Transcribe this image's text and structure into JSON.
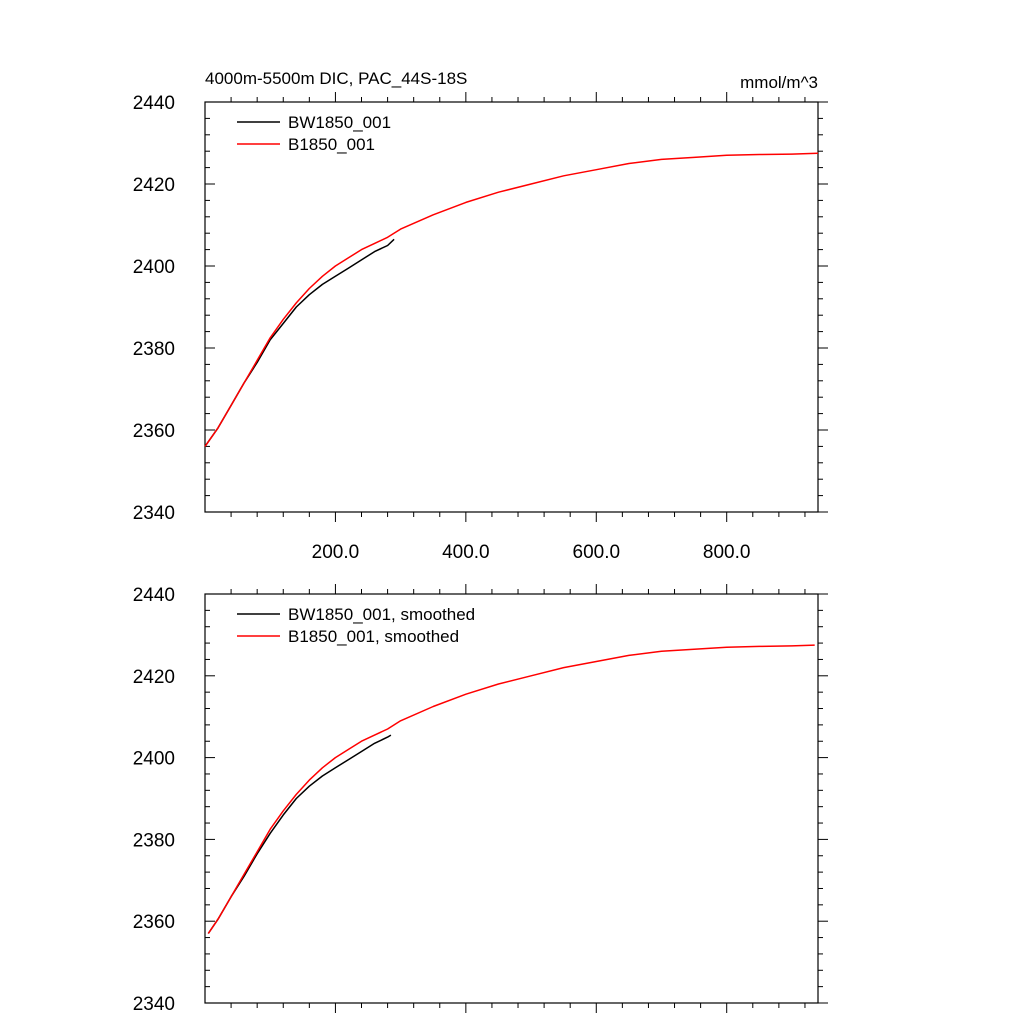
{
  "chart_data": [
    {
      "type": "line",
      "title": "4000m-5500m DIC, PAC_44S-18S",
      "units": "mmol/m^3",
      "xlabel": "",
      "ylabel": "",
      "xlim": [
        0,
        940
      ],
      "ylim": [
        2340,
        2440
      ],
      "x_ticks": [
        "200.0",
        "400.0",
        "600.0",
        "800.0"
      ],
      "y_ticks": [
        "2340",
        "2360",
        "2380",
        "2400",
        "2420",
        "2440"
      ],
      "legend_position": "top-left",
      "grid": false,
      "series": [
        {
          "name": "BW1850_001",
          "color": "#000000",
          "x": [
            0,
            20,
            40,
            60,
            80,
            100,
            120,
            140,
            160,
            180,
            200,
            220,
            240,
            260,
            280,
            290
          ],
          "y": [
            2356,
            2360.5,
            2366,
            2371.5,
            2376.5,
            2382,
            2386,
            2390,
            2393,
            2395.5,
            2397.5,
            2399.5,
            2401.5,
            2403.5,
            2405,
            2406.5
          ]
        },
        {
          "name": "B1850_001",
          "color": "#ff0000",
          "x": [
            0,
            20,
            40,
            60,
            80,
            100,
            120,
            140,
            160,
            180,
            200,
            220,
            240,
            260,
            280,
            300,
            350,
            400,
            450,
            500,
            550,
            600,
            650,
            700,
            750,
            800,
            850,
            900,
            940
          ],
          "y": [
            2356,
            2360.5,
            2366,
            2371.5,
            2377,
            2382.5,
            2387,
            2391,
            2394.5,
            2397.5,
            2400,
            2402,
            2404,
            2405.5,
            2407,
            2409,
            2412.5,
            2415.5,
            2418,
            2420,
            2422,
            2423.5,
            2425,
            2426,
            2426.5,
            2427,
            2427.2,
            2427.3,
            2427.5
          ]
        }
      ]
    },
    {
      "type": "line",
      "title": "",
      "xlabel": "",
      "ylabel": "",
      "xlim": [
        0,
        940
      ],
      "ylim": [
        2340,
        2440
      ],
      "y_ticks": [
        "2340",
        "2360",
        "2380",
        "2400",
        "2420",
        "2440"
      ],
      "legend_position": "top-left",
      "grid": false,
      "series": [
        {
          "name": "BW1850_001, smoothed",
          "color": "#000000",
          "x": [
            5,
            20,
            40,
            60,
            80,
            100,
            120,
            140,
            160,
            180,
            200,
            220,
            240,
            260,
            280,
            285
          ],
          "y": [
            2357,
            2360.5,
            2366,
            2371,
            2376.5,
            2381.5,
            2386,
            2390,
            2393,
            2395.5,
            2397.5,
            2399.5,
            2401.5,
            2403.5,
            2405,
            2405.5
          ]
        },
        {
          "name": "B1850_001, smoothed",
          "color": "#ff0000",
          "x": [
            5,
            20,
            40,
            60,
            80,
            100,
            120,
            140,
            160,
            180,
            200,
            220,
            240,
            260,
            280,
            300,
            350,
            400,
            450,
            500,
            550,
            600,
            650,
            700,
            750,
            800,
            850,
            900,
            935
          ],
          "y": [
            2357,
            2360.5,
            2366,
            2371.5,
            2377,
            2382.5,
            2387,
            2391,
            2394.5,
            2397.5,
            2400,
            2402,
            2404,
            2405.5,
            2407,
            2409,
            2412.5,
            2415.5,
            2418,
            2420,
            2422,
            2423.5,
            2425,
            2426,
            2426.5,
            2427,
            2427.2,
            2427.3,
            2427.5
          ]
        }
      ]
    }
  ]
}
